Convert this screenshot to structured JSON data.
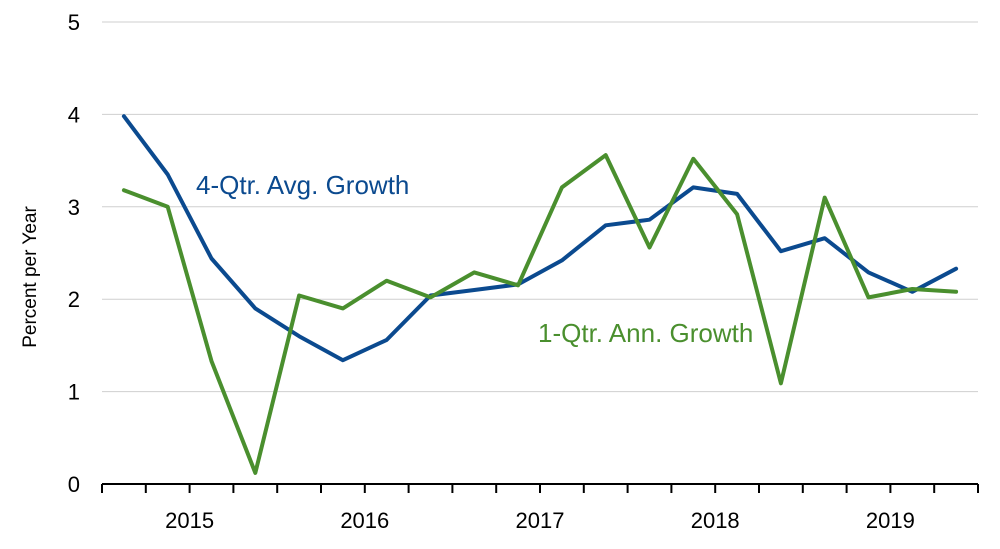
{
  "chart_data": {
    "type": "line",
    "title": "",
    "xlabel": "",
    "ylabel": "Percent per Year",
    "ylim": [
      0,
      5
    ],
    "yticks": [
      "0",
      "1",
      "2",
      "3",
      "4",
      "5"
    ],
    "x_group_labels": [
      "2015",
      "2016",
      "2017",
      "2018",
      "2019"
    ],
    "quarters_per_year": 4,
    "grid": true,
    "series": [
      {
        "name": "4-Qtr. Avg. Growth",
        "color": "#0b4a8f",
        "values": [
          3.98,
          3.35,
          2.44,
          1.9,
          1.6,
          1.34,
          1.56,
          2.04,
          2.1,
          2.16,
          2.42,
          2.8,
          2.86,
          3.21,
          3.14,
          2.52,
          2.66,
          2.29,
          2.08,
          2.33
        ]
      },
      {
        "name": "1-Qtr. Ann. Growth",
        "color": "#4a8f2e",
        "values": [
          3.18,
          3.0,
          1.33,
          0.12,
          2.04,
          1.9,
          2.2,
          2.02,
          2.29,
          2.15,
          3.21,
          3.56,
          2.56,
          3.52,
          2.92,
          1.09,
          3.1,
          2.02,
          2.11,
          2.08
        ]
      }
    ]
  }
}
